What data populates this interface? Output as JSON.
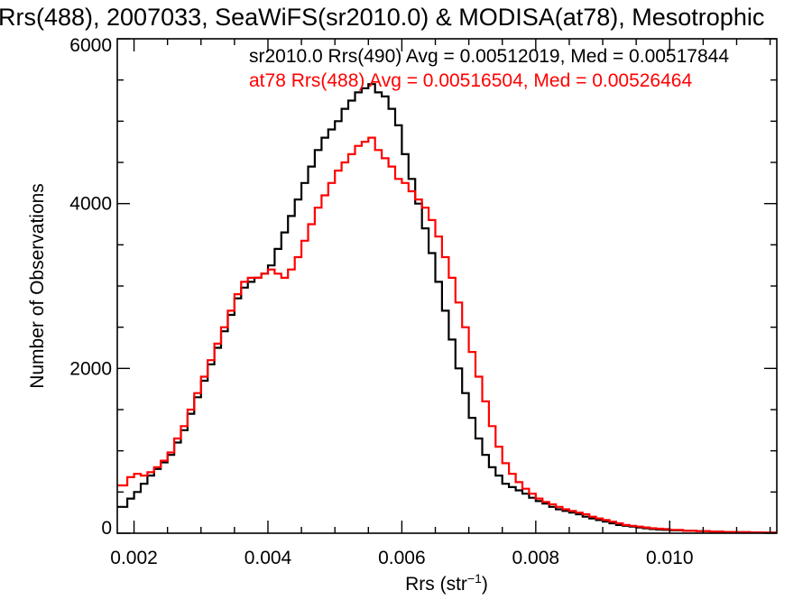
{
  "chart_data": {
    "type": "line",
    "step": true,
    "title": "Rrs(488), 2007033, SeaWiFS(sr2010.0) & MODISA(at78), Mesotrophic",
    "xlabel": "Rrs (str",
    "xlabel_sup": "−1",
    "xlabel_close": ")",
    "ylabel": "Number of Observations",
    "xlim": [
      0.00175,
      0.0116
    ],
    "ylim": [
      0,
      6000
    ],
    "x_ticks": [
      {
        "value": 0.002,
        "label": "0.002"
      },
      {
        "value": 0.004,
        "label": "0.004"
      },
      {
        "value": 0.006,
        "label": "0.006"
      },
      {
        "value": 0.008,
        "label": "0.008"
      },
      {
        "value": 0.01,
        "label": "0.010"
      }
    ],
    "y_ticks": [
      {
        "value": 0,
        "label": "0"
      },
      {
        "value": 2000,
        "label": "2000"
      },
      {
        "value": 4000,
        "label": "4000"
      },
      {
        "value": 6000,
        "label": "6000"
      }
    ],
    "x_minor_step": 0.0005,
    "y_minor_step": 500,
    "grid": false,
    "legend_position": "top-right",
    "series": [
      {
        "name": "sr2010.0 Rrs(490) Avg = 0.00512019, Med = 0.00517844",
        "color": "#000000",
        "x": [
          0.00175,
          0.0019,
          0.002,
          0.0021,
          0.0022,
          0.0023,
          0.0024,
          0.0025,
          0.0026,
          0.0027,
          0.0028,
          0.0029,
          0.003,
          0.0031,
          0.0032,
          0.0033,
          0.0034,
          0.0035,
          0.0036,
          0.0037,
          0.0038,
          0.0039,
          0.004,
          0.0041,
          0.0042,
          0.0043,
          0.0044,
          0.0045,
          0.0046,
          0.0047,
          0.0048,
          0.0049,
          0.005,
          0.0051,
          0.0052,
          0.0053,
          0.0054,
          0.0055,
          0.0056,
          0.0057,
          0.0058,
          0.0059,
          0.006,
          0.0061,
          0.0062,
          0.0063,
          0.0064,
          0.0065,
          0.0066,
          0.0067,
          0.0068,
          0.0069,
          0.007,
          0.0071,
          0.0072,
          0.0073,
          0.0074,
          0.0075,
          0.0076,
          0.0077,
          0.0078,
          0.0079,
          0.008,
          0.0081,
          0.0082,
          0.0083,
          0.0084,
          0.0085,
          0.0086,
          0.0087,
          0.0088,
          0.0089,
          0.009,
          0.0091,
          0.0092,
          0.0093,
          0.0094,
          0.0095,
          0.0096,
          0.0097,
          0.0098,
          0.0099,
          0.01,
          0.0102,
          0.0104,
          0.0106,
          0.0108,
          0.011,
          0.0112,
          0.0114,
          0.0116
        ],
        "values": [
          320,
          420,
          500,
          600,
          700,
          780,
          860,
          950,
          1100,
          1250,
          1450,
          1650,
          1850,
          2050,
          2250,
          2450,
          2650,
          2850,
          2980,
          3050,
          3100,
          3150,
          3250,
          3450,
          3650,
          3850,
          4050,
          4250,
          4450,
          4650,
          4800,
          4900,
          5000,
          5150,
          5250,
          5350,
          5400,
          5450,
          5350,
          5300,
          5150,
          4950,
          4600,
          4300,
          4000,
          3700,
          3400,
          3050,
          2700,
          2350,
          2000,
          1700,
          1400,
          1150,
          950,
          800,
          700,
          600,
          560,
          520,
          480,
          430,
          390,
          360,
          320,
          290,
          270,
          250,
          230,
          200,
          180,
          160,
          140,
          120,
          100,
          90,
          80,
          70,
          60,
          50,
          45,
          40,
          35,
          30,
          25,
          20,
          15,
          12,
          10,
          8,
          5
        ]
      },
      {
        "name": "at78 Rrs(488) Avg = 0.00516504, Med = 0.00526464",
        "color": "#ff0000",
        "x": [
          0.00175,
          0.0019,
          0.002,
          0.0021,
          0.0022,
          0.0023,
          0.0024,
          0.0025,
          0.0026,
          0.0027,
          0.0028,
          0.0029,
          0.003,
          0.0031,
          0.0032,
          0.0033,
          0.0034,
          0.0035,
          0.0036,
          0.0037,
          0.0038,
          0.0039,
          0.004,
          0.0041,
          0.0042,
          0.0043,
          0.0044,
          0.0045,
          0.0046,
          0.0047,
          0.0048,
          0.0049,
          0.005,
          0.0051,
          0.0052,
          0.0053,
          0.0054,
          0.0055,
          0.0056,
          0.0057,
          0.0058,
          0.0059,
          0.006,
          0.0061,
          0.0062,
          0.0063,
          0.0064,
          0.0065,
          0.0066,
          0.0067,
          0.0068,
          0.0069,
          0.007,
          0.0071,
          0.0072,
          0.0073,
          0.0074,
          0.0075,
          0.0076,
          0.0077,
          0.0078,
          0.0079,
          0.008,
          0.0081,
          0.0082,
          0.0083,
          0.0084,
          0.0085,
          0.0086,
          0.0087,
          0.0088,
          0.0089,
          0.009,
          0.0091,
          0.0092,
          0.0093,
          0.0094,
          0.0095,
          0.0096,
          0.0097,
          0.0098,
          0.0099,
          0.01,
          0.0102,
          0.0104,
          0.0106,
          0.0108,
          0.011,
          0.0112,
          0.0114,
          0.0116
        ],
        "values": [
          580,
          680,
          720,
          700,
          740,
          800,
          880,
          980,
          1150,
          1300,
          1500,
          1700,
          1900,
          2100,
          2300,
          2500,
          2700,
          2900,
          3050,
          3100,
          3100,
          3150,
          3200,
          3150,
          3100,
          3200,
          3350,
          3550,
          3750,
          3950,
          4100,
          4250,
          4400,
          4500,
          4600,
          4700,
          4750,
          4800,
          4650,
          4550,
          4450,
          4300,
          4250,
          4150,
          4050,
          3950,
          3800,
          3600,
          3350,
          3100,
          2800,
          2500,
          2200,
          1900,
          1600,
          1300,
          1050,
          850,
          720,
          620,
          540,
          480,
          420,
          380,
          350,
          320,
          290,
          270,
          250,
          230,
          200,
          180,
          160,
          140,
          120,
          100,
          90,
          80,
          70,
          60,
          55,
          50,
          40,
          30,
          25,
          20,
          15,
          12,
          10,
          8,
          5
        ]
      }
    ]
  }
}
